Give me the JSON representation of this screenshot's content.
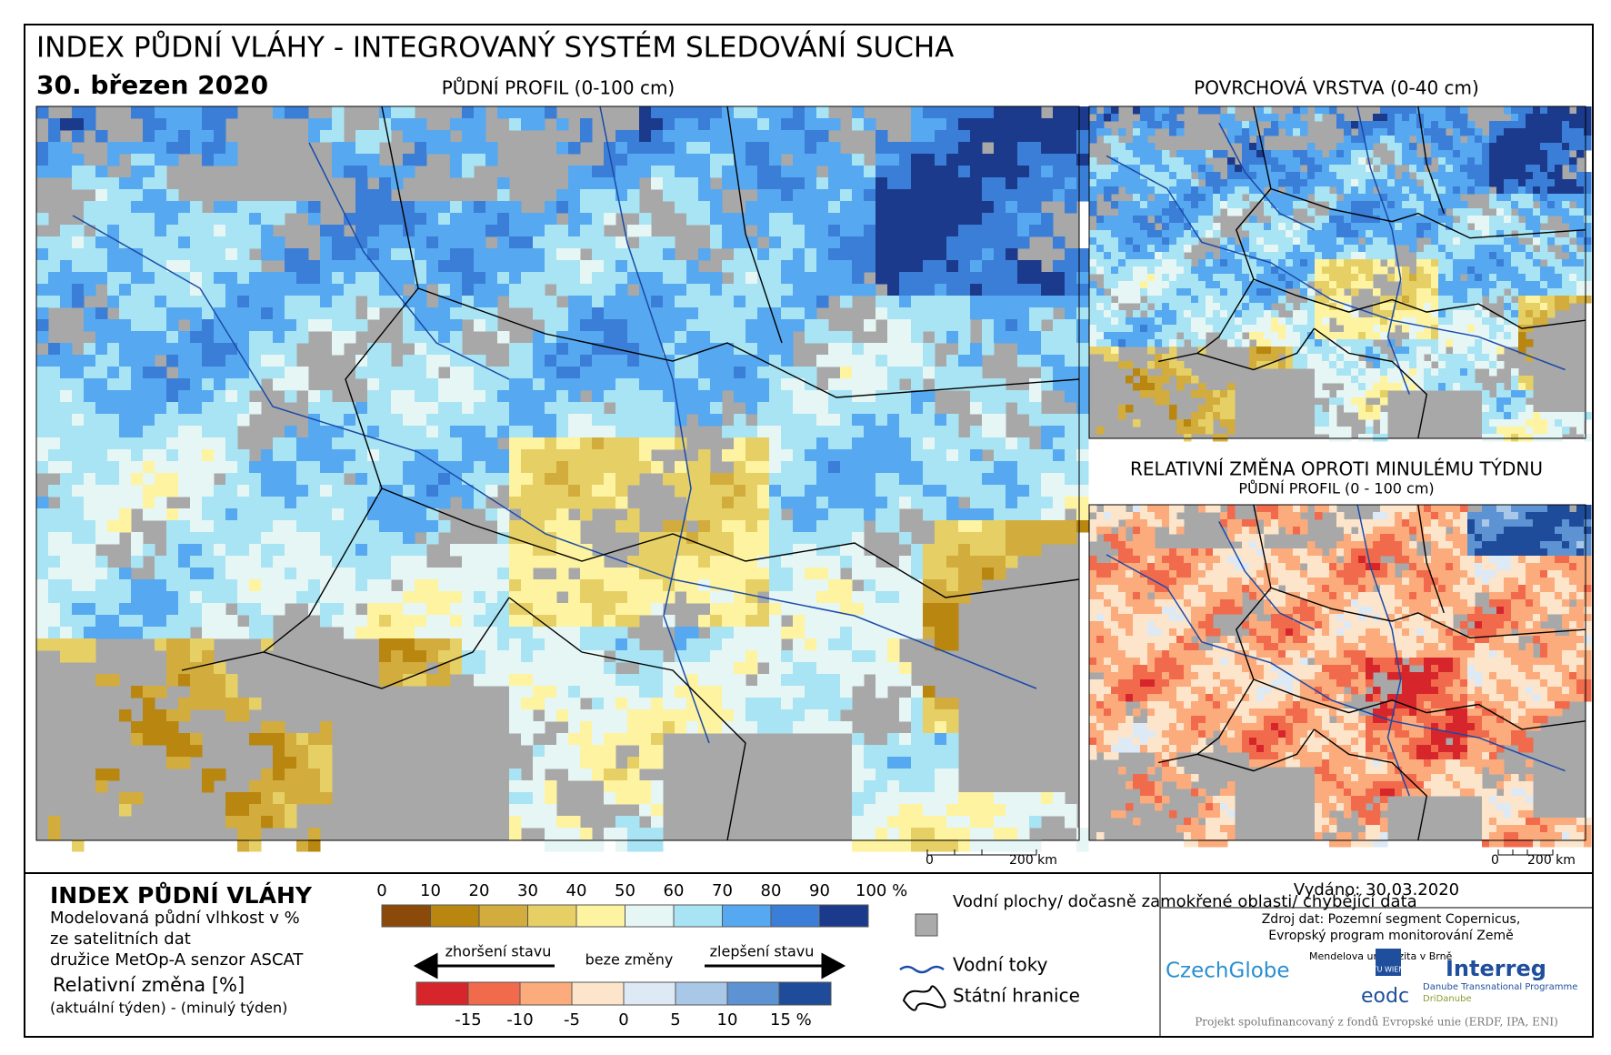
{
  "header": {
    "title": "INDEX PŮDNÍ VLÁHY - INTEGROVANÝ SYSTÉM SLEDOVÁNÍ SUCHA",
    "date": "30. březen 2020"
  },
  "maps": {
    "main": {
      "title": "PŮDNÍ PROFIL (0-100 cm)",
      "scale": [
        "0",
        "200 km"
      ]
    },
    "surface": {
      "title": "POVRCHOVÁ VRSTVA (0-40 cm)"
    },
    "change": {
      "title": "RELATIVNÍ ZMĚNA OPROTI MINULÉMU TÝDNU",
      "subtitle": "PŮDNÍ PROFIL (0 - 100 cm)",
      "scale": [
        "0",
        "200 km"
      ]
    }
  },
  "legend": {
    "title": "INDEX PŮDNÍ VLÁHY",
    "description": [
      "Modelovaná půdní vlhkost v %",
      "ze satelitních dat",
      "družice MetOp-A senzor ASCAT"
    ],
    "moisture_scale": {
      "labels": [
        "0",
        "10",
        "20",
        "30",
        "40",
        "50",
        "60",
        "70",
        "80",
        "90",
        "100 %"
      ],
      "colors": [
        "#8c4a0a",
        "#b9860f",
        "#d2ac3c",
        "#e6d066",
        "#fdf3a0",
        "#e6f6f5",
        "#a8e4f4",
        "#56a8f0",
        "#3a7ed8",
        "#1c3a8c"
      ]
    },
    "change_title": "Relativní změna [%]",
    "change_description": "(aktuální týden) - (minulý týden)",
    "worse": "zhoršení stavu",
    "same": "beze změny",
    "better": "zlepšení stavu",
    "change_scale": {
      "labels": [
        "-15",
        "-10",
        "-5",
        "0",
        "5",
        "10",
        "15 %"
      ],
      "colors": [
        "#d7262b",
        "#f26a4c",
        "#fbab7c",
        "#fde5cb",
        "#dde9f5",
        "#a9c8e8",
        "#5d93d2",
        "#1f4c9a"
      ]
    },
    "symbols": [
      "Vodní plochy/ dočasně zamokřené oblasti/ chybějící data",
      "Vodní toky",
      "Státní hranice"
    ]
  },
  "footer": {
    "issued": "Vydáno: 30.03.2020",
    "source": [
      "Zdroj dat: Pozemní segment Copernicus,",
      "Evropský program monitorování Země"
    ],
    "logos": [
      "CzechGlobe",
      "Mendelova univerzita v Brně",
      "TU WIEN",
      "eodc",
      "Interreg",
      "Danube Transnational Programme",
      "DriDanube"
    ],
    "funding": "Projekt spolufinancovaný z fondů Evropské unie (ERDF, IPA, ENI)"
  }
}
